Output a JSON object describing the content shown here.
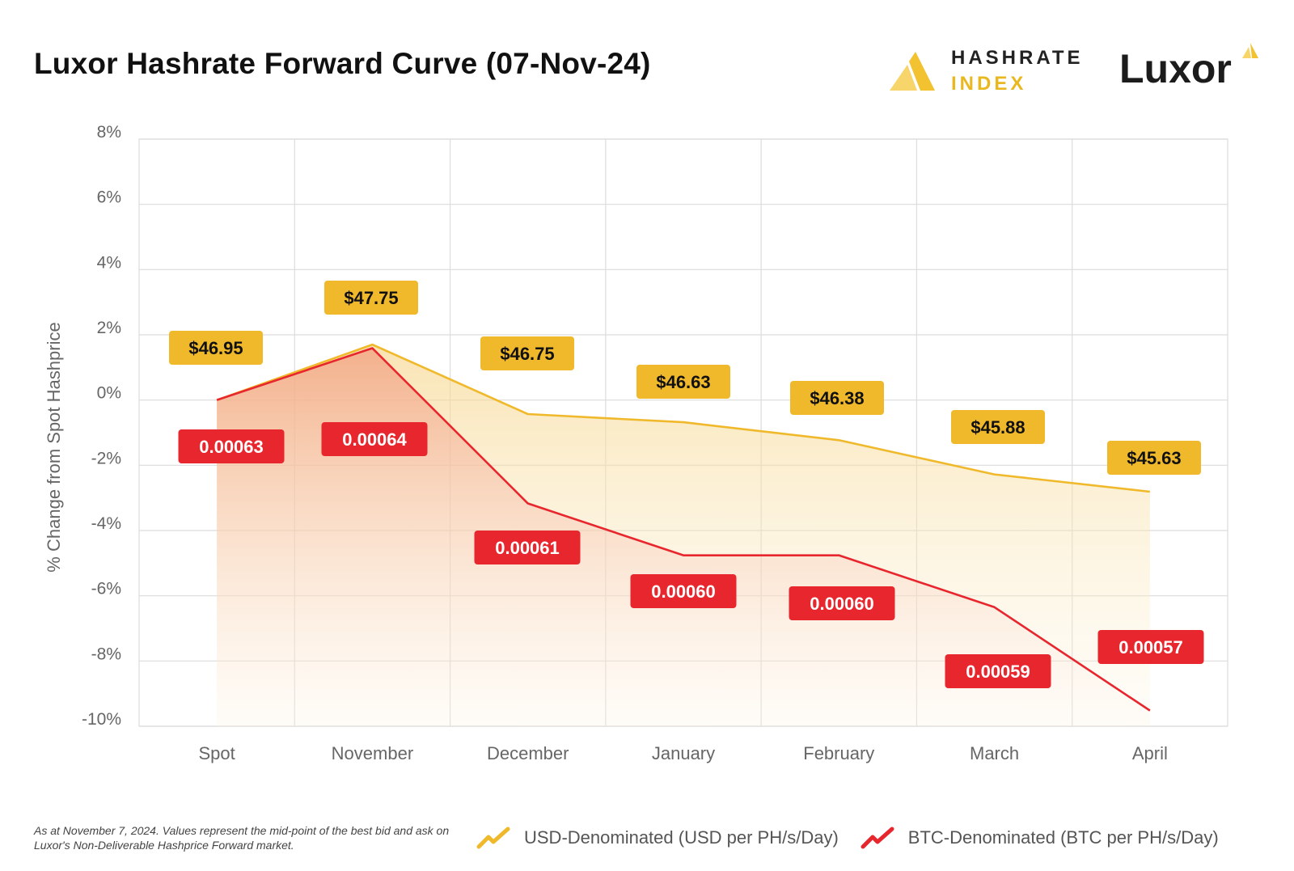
{
  "header": {
    "title": "Luxor Hashrate Forward Curve (07-Nov-24)",
    "hashrate_index_logo": {
      "line1": "HASHRATE",
      "line2": "INDEX",
      "icon": "hashrate-index-mark"
    },
    "luxor_logo": {
      "text": "Luxor",
      "icon": "luxor-mark"
    }
  },
  "colors": {
    "usd": "#f0b92c",
    "btc": "#e8262d",
    "grid": "#dcdcdc",
    "axis_text": "#666666"
  },
  "chart_data": {
    "type": "area",
    "title": "Luxor Hashrate Forward Curve (07-Nov-24)",
    "xlabel": "",
    "ylabel": "% Change from Spot Hashprice",
    "categories": [
      "Spot",
      "November",
      "December",
      "January",
      "February",
      "March",
      "April"
    ],
    "ylim": [
      -10,
      8
    ],
    "yticks": [
      8,
      6,
      4,
      2,
      0,
      -2,
      -4,
      -6,
      -8,
      -10
    ],
    "ytick_labels": [
      "8%",
      "6%",
      "4%",
      "2%",
      "0%",
      "-2%",
      "-4%",
      "-6%",
      "-8%",
      "-10%"
    ],
    "grid": true,
    "legend_position": "bottom",
    "series": [
      {
        "name": "USD-Denominated (USD per PH/s/Day)",
        "color": "#f0b92c",
        "values": [
          0.0,
          1.7,
          -0.43,
          -0.68,
          -1.23,
          -2.28,
          -2.81
        ],
        "data_labels": [
          "$46.95",
          "$47.75",
          "$46.75",
          "$46.63",
          "$46.38",
          "$45.88",
          "$45.63"
        ]
      },
      {
        "name": "BTC-Denominated (BTC per PH/s/Day)",
        "color": "#e8262d",
        "values": [
          0.0,
          1.59,
          -3.17,
          -4.76,
          -4.76,
          -6.35,
          -9.52
        ],
        "data_labels": [
          "0.00063",
          "0.00064",
          "0.00061",
          "0.00060",
          "0.00060",
          "0.00059",
          "0.00057"
        ]
      }
    ]
  },
  "footer": {
    "note": "As at November 7, 2024. Values represent the mid-point of the best bid and ask on Luxor's Non-Deliverable Hashprice Forward market."
  },
  "legend": {
    "items": [
      {
        "label": "USD-Denominated (USD per PH/s/Day)",
        "icon": "trend-up-icon",
        "color": "#f0b92c"
      },
      {
        "label": "BTC-Denominated (BTC per PH/s/Day)",
        "icon": "trend-up-icon",
        "color": "#e8262d"
      }
    ]
  }
}
